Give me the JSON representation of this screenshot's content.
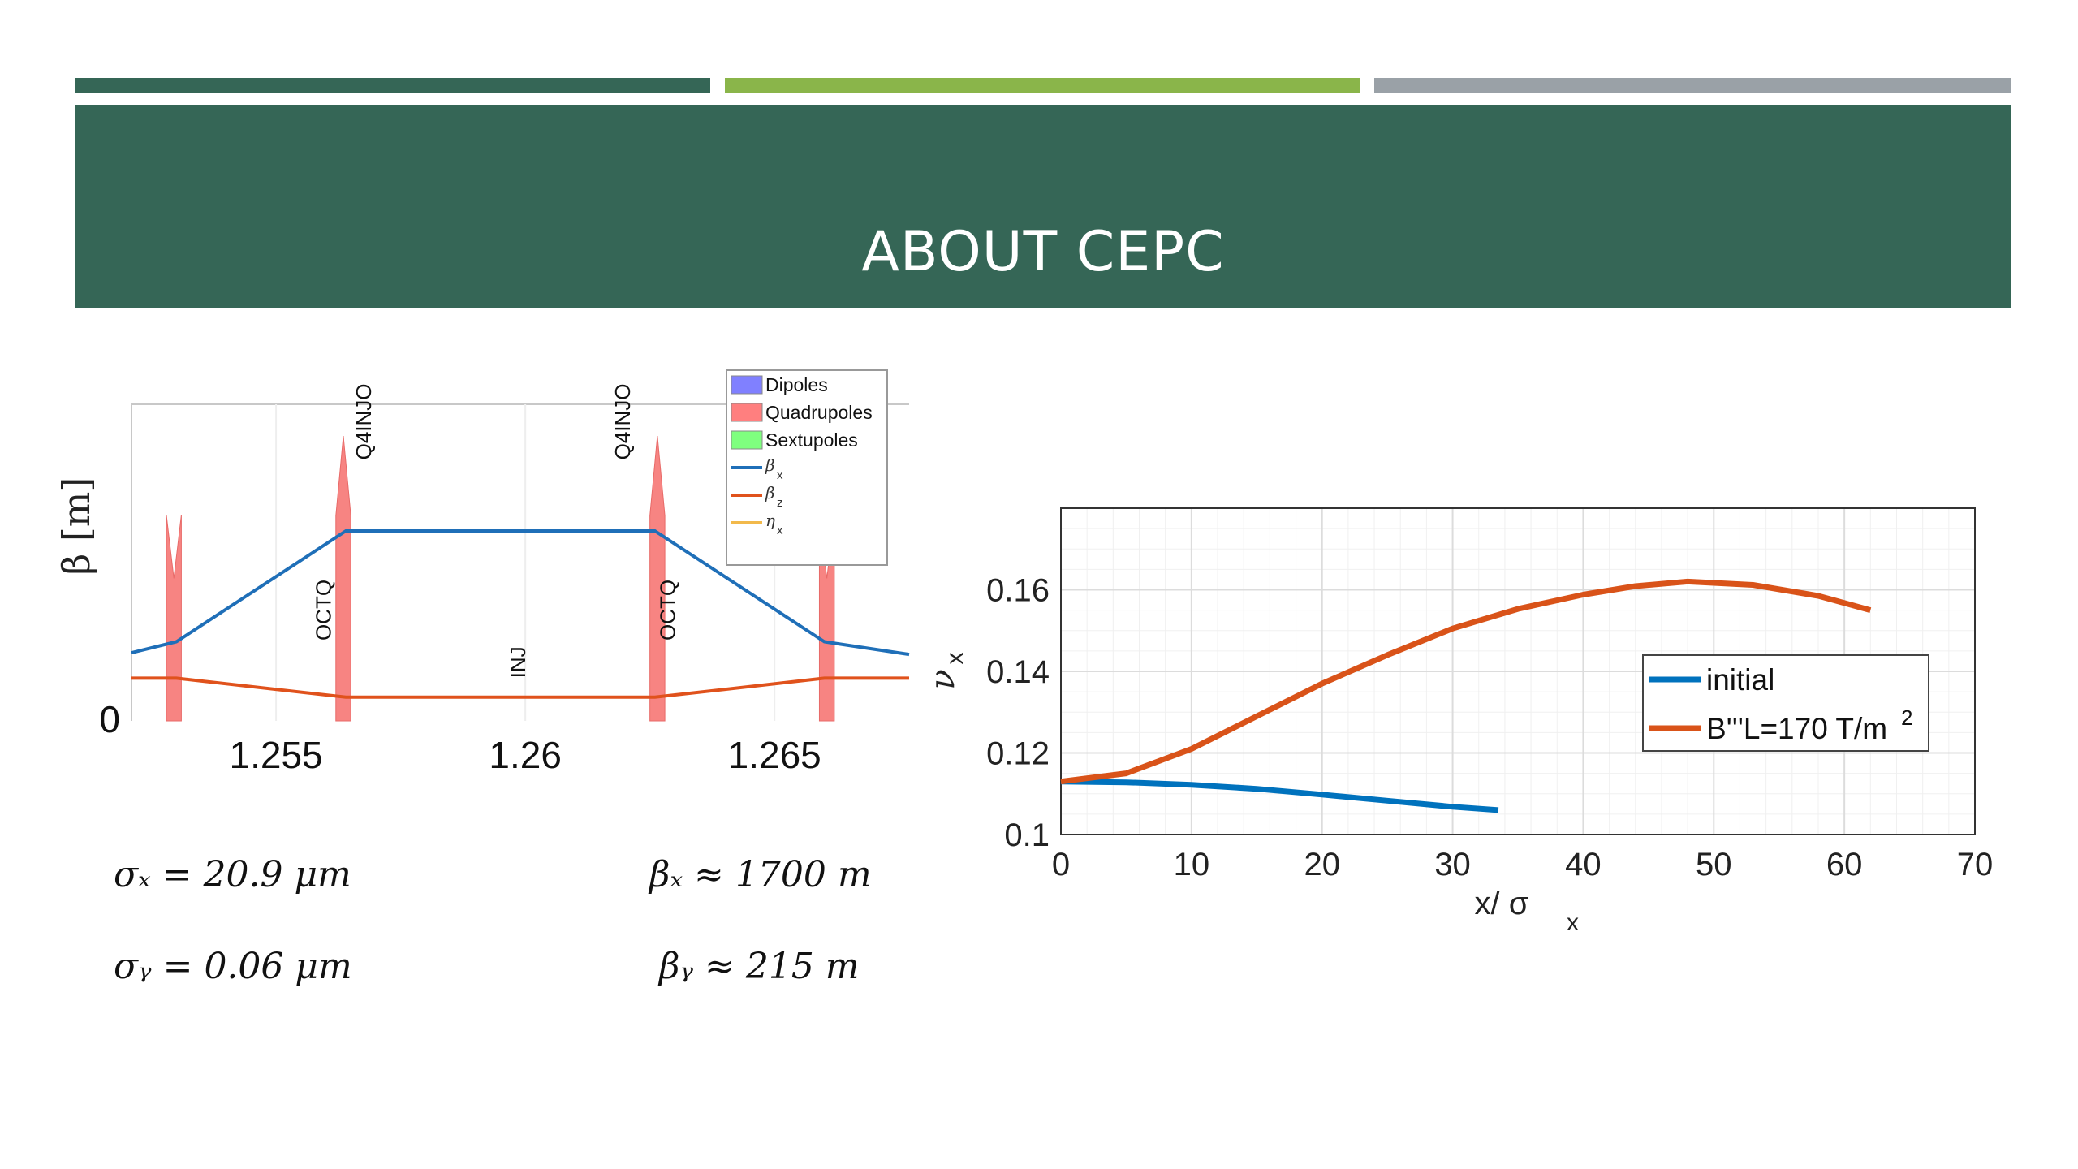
{
  "slide": {
    "title": "ABOUT CEPC",
    "title_band_color": "#356656",
    "accent_bars": [
      {
        "name": "dark-green",
        "color": "#356656"
      },
      {
        "name": "light-green",
        "color": "#8ab54a"
      },
      {
        "name": "gray",
        "color": "#9aa1a7"
      }
    ]
  },
  "equations": {
    "sigma_x": "σₓ = 20.9 μm",
    "sigma_y": "σᵧ = 0.06 μm",
    "beta_x": "βₓ ≈ 1700 m",
    "beta_y": "βᵧ ≈ 215 m"
  },
  "chart_data": [
    {
      "type": "line",
      "ylabel": "β [m]",
      "xlim": [
        1.2521,
        1.2677
      ],
      "ylim": [
        0,
        2000
      ],
      "xticks": [
        "1.255",
        "1.26",
        "1.265"
      ],
      "xtick_values": [
        1.255,
        1.26,
        1.265
      ],
      "yticks": [
        "0"
      ],
      "ytick_values": [
        0
      ],
      "legend_position": "top-right",
      "legend": [
        {
          "label": "Dipoles",
          "color": "#8080ff",
          "kind": "patch"
        },
        {
          "label": "Quadrupoles",
          "color": "#ff7f7f",
          "kind": "patch"
        },
        {
          "label": "Sextupoles",
          "color": "#7fff7f",
          "kind": "patch"
        },
        {
          "label": "β",
          "sub": "x",
          "color": "#1f6fb8",
          "kind": "line"
        },
        {
          "label": "β",
          "sub": "z",
          "color": "#e0521c",
          "kind": "line"
        },
        {
          "label": "η",
          "sub": "x",
          "color": "#f2b94b",
          "kind": "line"
        }
      ],
      "element_labels": [
        {
          "text": "Q4INJO",
          "x": 1.2569,
          "y": 1890
        },
        {
          "text": "OCTQ",
          "x": 1.2561,
          "y": 700
        },
        {
          "text": "INJ",
          "x": 1.26,
          "y": 370
        },
        {
          "text": "Q4INJO",
          "x": 1.2621,
          "y": 1890
        },
        {
          "text": "OCTQ",
          "x": 1.263,
          "y": 700
        }
      ],
      "magnets": [
        {
          "type": "quad",
          "x0": 1.2528,
          "x1": 1.2531,
          "top": 1300,
          "notch": 900
        },
        {
          "type": "quad",
          "x0": 1.2562,
          "x1": 1.2565,
          "top": 1800,
          "notch": null
        },
        {
          "type": "quad",
          "x0": 1.2625,
          "x1": 1.2628,
          "top": 1800,
          "notch": null
        },
        {
          "type": "quad",
          "x0": 1.2659,
          "x1": 1.2662,
          "top": 1300,
          "notch": 900
        }
      ],
      "series": [
        {
          "name": "βx",
          "color": "#1f6fb8",
          "x": [
            1.2521,
            1.253,
            1.2564,
            1.2626,
            1.266,
            1.2677
          ],
          "y": [
            430,
            500,
            1200,
            1200,
            500,
            420
          ]
        },
        {
          "name": "βz",
          "color": "#e0521c",
          "x": [
            1.2521,
            1.253,
            1.2564,
            1.2626,
            1.266,
            1.2677
          ],
          "y": [
            270,
            270,
            150,
            150,
            270,
            270
          ]
        }
      ]
    },
    {
      "type": "line",
      "xlabel": "x/ σ",
      "xlabel_sub": "x",
      "ylabel": "ν",
      "ylabel_sub": "x",
      "xlim": [
        0,
        70
      ],
      "ylim": [
        0.1,
        0.18
      ],
      "xticks": [
        "0",
        "10",
        "20",
        "30",
        "40",
        "50",
        "60",
        "70"
      ],
      "xtick_values": [
        0,
        10,
        20,
        30,
        40,
        50,
        60,
        70
      ],
      "yticks": [
        "0.1",
        "0.12",
        "0.14",
        "0.16"
      ],
      "ytick_values": [
        0.1,
        0.12,
        0.14,
        0.16
      ],
      "grid": true,
      "legend_position": "center-right",
      "series": [
        {
          "name": "initial",
          "color": "#0072bd",
          "x": [
            0,
            5,
            10,
            15,
            20,
            25,
            30,
            33.5
          ],
          "y": [
            0.113,
            0.1128,
            0.1122,
            0.1112,
            0.1098,
            0.1083,
            0.1068,
            0.106
          ]
        },
        {
          "name": "B'''L=170 T/m",
          "name_sup": "2",
          "color": "#d95319",
          "x": [
            0,
            5,
            10,
            15,
            20,
            25,
            30,
            35,
            40,
            44,
            48,
            53,
            58,
            62
          ],
          "y": [
            0.113,
            0.115,
            0.121,
            0.129,
            0.137,
            0.144,
            0.1505,
            0.1553,
            0.1588,
            0.1609,
            0.162,
            0.1612,
            0.1585,
            0.155
          ]
        }
      ]
    }
  ]
}
